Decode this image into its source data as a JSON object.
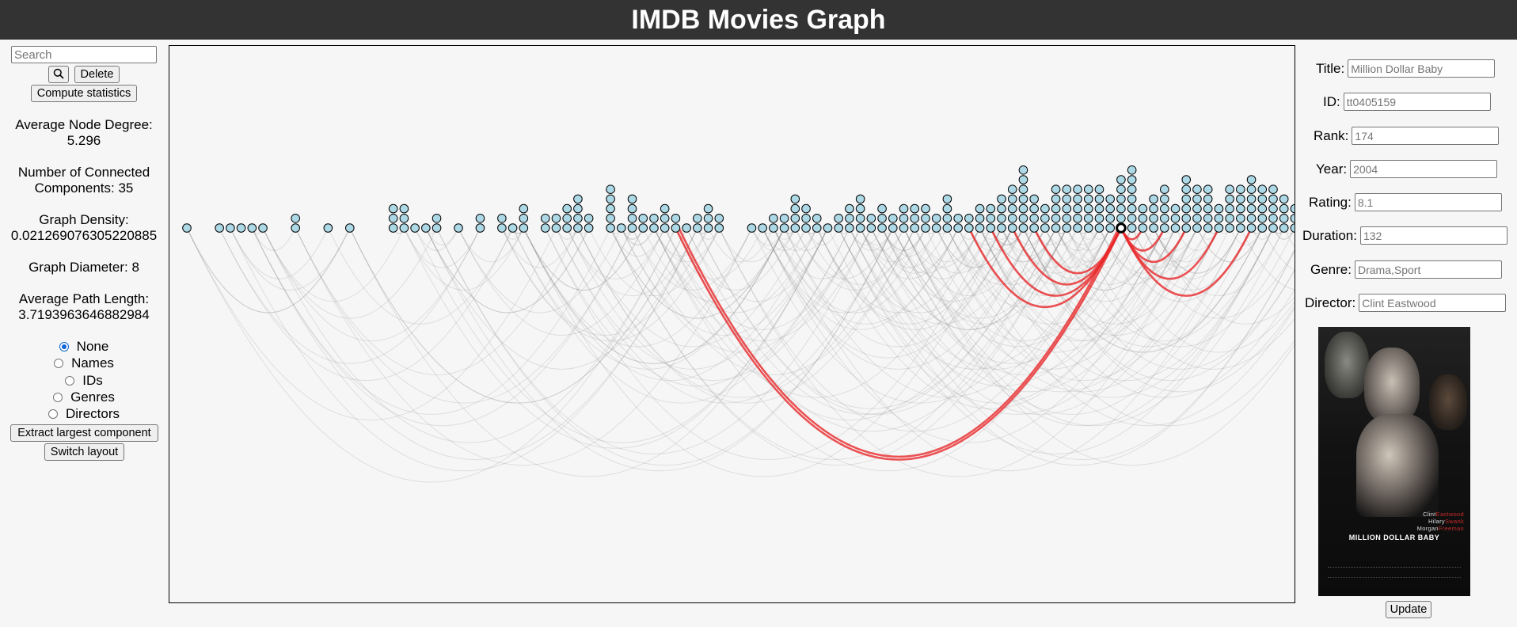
{
  "header": {
    "title": "IMDB Movies Graph"
  },
  "left": {
    "search_placeholder": "Search",
    "search_button_icon": "magnifier-icon",
    "delete_label": "Delete",
    "compute_label": "Compute statistics",
    "avg_degree_label": "Average Node Degree:",
    "avg_degree_value": "5.296",
    "components_line1": "Number of Connected",
    "components_line2": "Components: 35",
    "density_label": "Graph Density:",
    "density_value": "0.021269076305220885",
    "diameter": "Graph Diameter: 8",
    "path_length_label": "Average Path Length:",
    "path_length_value": "3.7193963646882984",
    "radio_options": [
      "None",
      "Names",
      "IDs",
      "Genres",
      "Directors"
    ],
    "radio_selected": "None",
    "extract_label": "Extract largest component",
    "switch_label": "Switch layout"
  },
  "details": {
    "title_label": "Title:",
    "title_value": "Million Dollar Baby",
    "id_label": "ID:",
    "id_value": "tt0405159",
    "rank_label": "Rank:",
    "rank_value": "174",
    "year_label": "Year:",
    "year_value": "2004",
    "rating_label": "Rating:",
    "rating_value": "8.1",
    "duration_label": "Duration:",
    "duration_value": "132",
    "genre_label": "Genre:",
    "genre_value": "Drama,Sport",
    "director_label": "Director:",
    "director_value": "Clint Eastwood",
    "update_label": "Update"
  },
  "poster": {
    "cast_line1_a": "Clint",
    "cast_line1_b": "Eastwood",
    "cast_line2_a": "Hilary",
    "cast_line2_b": "Swank",
    "cast_line3_a": "Morgan",
    "cast_line3_b": "Freeman",
    "movie_title": "MILLION DOLLAR BABY"
  },
  "colors": {
    "node_fill": "#add8e6",
    "node_stroke": "#000000",
    "edge": "#888888",
    "highlight_edge": "#e8282a",
    "header_bg": "#333333"
  },
  "graph": {
    "stack_counts": [
      1,
      0,
      0,
      1,
      1,
      1,
      1,
      1,
      0,
      0,
      2,
      0,
      0,
      1,
      0,
      1,
      0,
      0,
      0,
      3,
      3,
      1,
      1,
      2,
      0,
      1,
      0,
      2,
      0,
      2,
      1,
      3,
      0,
      2,
      2,
      3,
      4,
      2,
      0,
      5,
      1,
      4,
      2,
      2,
      3,
      2,
      1,
      2,
      3,
      2,
      0,
      0,
      1,
      1,
      2,
      2,
      4,
      3,
      2,
      1,
      2,
      3,
      4,
      2,
      3,
      2,
      3,
      3,
      3,
      2,
      4,
      2,
      2,
      3,
      3,
      4,
      5,
      7,
      4,
      3,
      5,
      5,
      5,
      5,
      5,
      4,
      6,
      7,
      3,
      4,
      5,
      3,
      6,
      5,
      5,
      3,
      5,
      5,
      6,
      5,
      5,
      4,
      3,
      6,
      7,
      5,
      1,
      1,
      1
    ],
    "selected_index": 86,
    "highlight_edges": [
      [
        86,
        45
      ],
      [
        86,
        45
      ],
      [
        86,
        72
      ],
      [
        86,
        74
      ],
      [
        86,
        76
      ],
      [
        86,
        78
      ],
      [
        86,
        88
      ],
      [
        86,
        90
      ],
      [
        86,
        92
      ],
      [
        86,
        95
      ],
      [
        86,
        98
      ]
    ]
  }
}
